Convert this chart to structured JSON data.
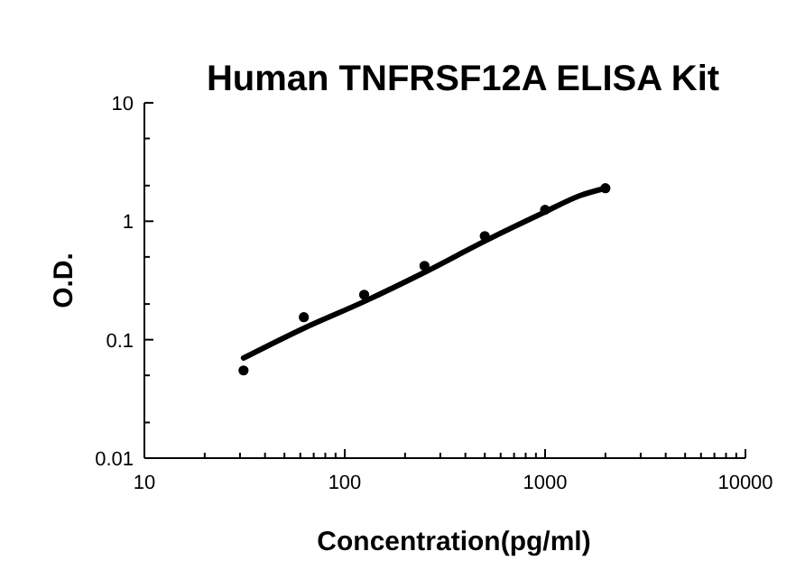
{
  "chart_data": {
    "type": "scatter",
    "title": "Human TNFRSF12A ELISA Kit",
    "xlabel": "Concentration(pg/ml)",
    "ylabel": "O.D.",
    "log": "xy",
    "xlim": [
      10,
      10000
    ],
    "ylim": [
      0.01,
      10
    ],
    "xticks": [
      10,
      {
        "value": 20,
        "label": null
      },
      {
        "value": 30,
        "label": null
      },
      {
        "value": 40,
        "label": null
      },
      {
        "value": 50,
        "label": null
      },
      {
        "value": 60,
        "label": null
      },
      {
        "value": 70,
        "label": null
      },
      {
        "value": 80,
        "label": null
      },
      {
        "value": 90,
        "label": null
      },
      100,
      {
        "value": 200,
        "label": null
      },
      {
        "value": 300,
        "label": null
      },
      {
        "value": 400,
        "label": null
      },
      {
        "value": 500,
        "label": null
      },
      {
        "value": 600,
        "label": null
      },
      {
        "value": 700,
        "label": null
      },
      {
        "value": 800,
        "label": null
      },
      {
        "value": 900,
        "label": null
      },
      1000,
      {
        "value": 2000,
        "label": null
      },
      {
        "value": 3000,
        "label": null
      },
      {
        "value": 4000,
        "label": null
      },
      {
        "value": 5000,
        "label": null
      },
      {
        "value": 6000,
        "label": null
      },
      {
        "value": 7000,
        "label": null
      },
      {
        "value": 8000,
        "label": null
      },
      {
        "value": 9000,
        "label": null
      },
      10000
    ],
    "yticks": [
      0.01,
      {
        "value": 0.02,
        "label": null
      },
      {
        "value": 0.05,
        "label": null
      },
      0.1,
      {
        "value": 0.2,
        "label": null
      },
      {
        "value": 0.5,
        "label": null
      },
      1,
      {
        "value": 2,
        "label": null
      },
      {
        "value": 5,
        "label": null
      },
      10
    ],
    "grid": false,
    "series": [
      {
        "color": "#000000",
        "marker": "circle",
        "x": [
          31.25,
          62.5,
          125,
          250,
          500,
          1000,
          2000
        ],
        "values": [
          0.055,
          0.155,
          0.24,
          0.42,
          0.75,
          1.25,
          1.9
        ]
      },
      {
        "type": "line",
        "color": "#000000",
        "marker": "none",
        "x": [
          31.25,
          62.5,
          125,
          250,
          500,
          1000,
          1500,
          2000
        ],
        "values": [
          0.07,
          0.125,
          0.21,
          0.37,
          0.68,
          1.2,
          1.65,
          1.9
        ]
      }
    ]
  }
}
